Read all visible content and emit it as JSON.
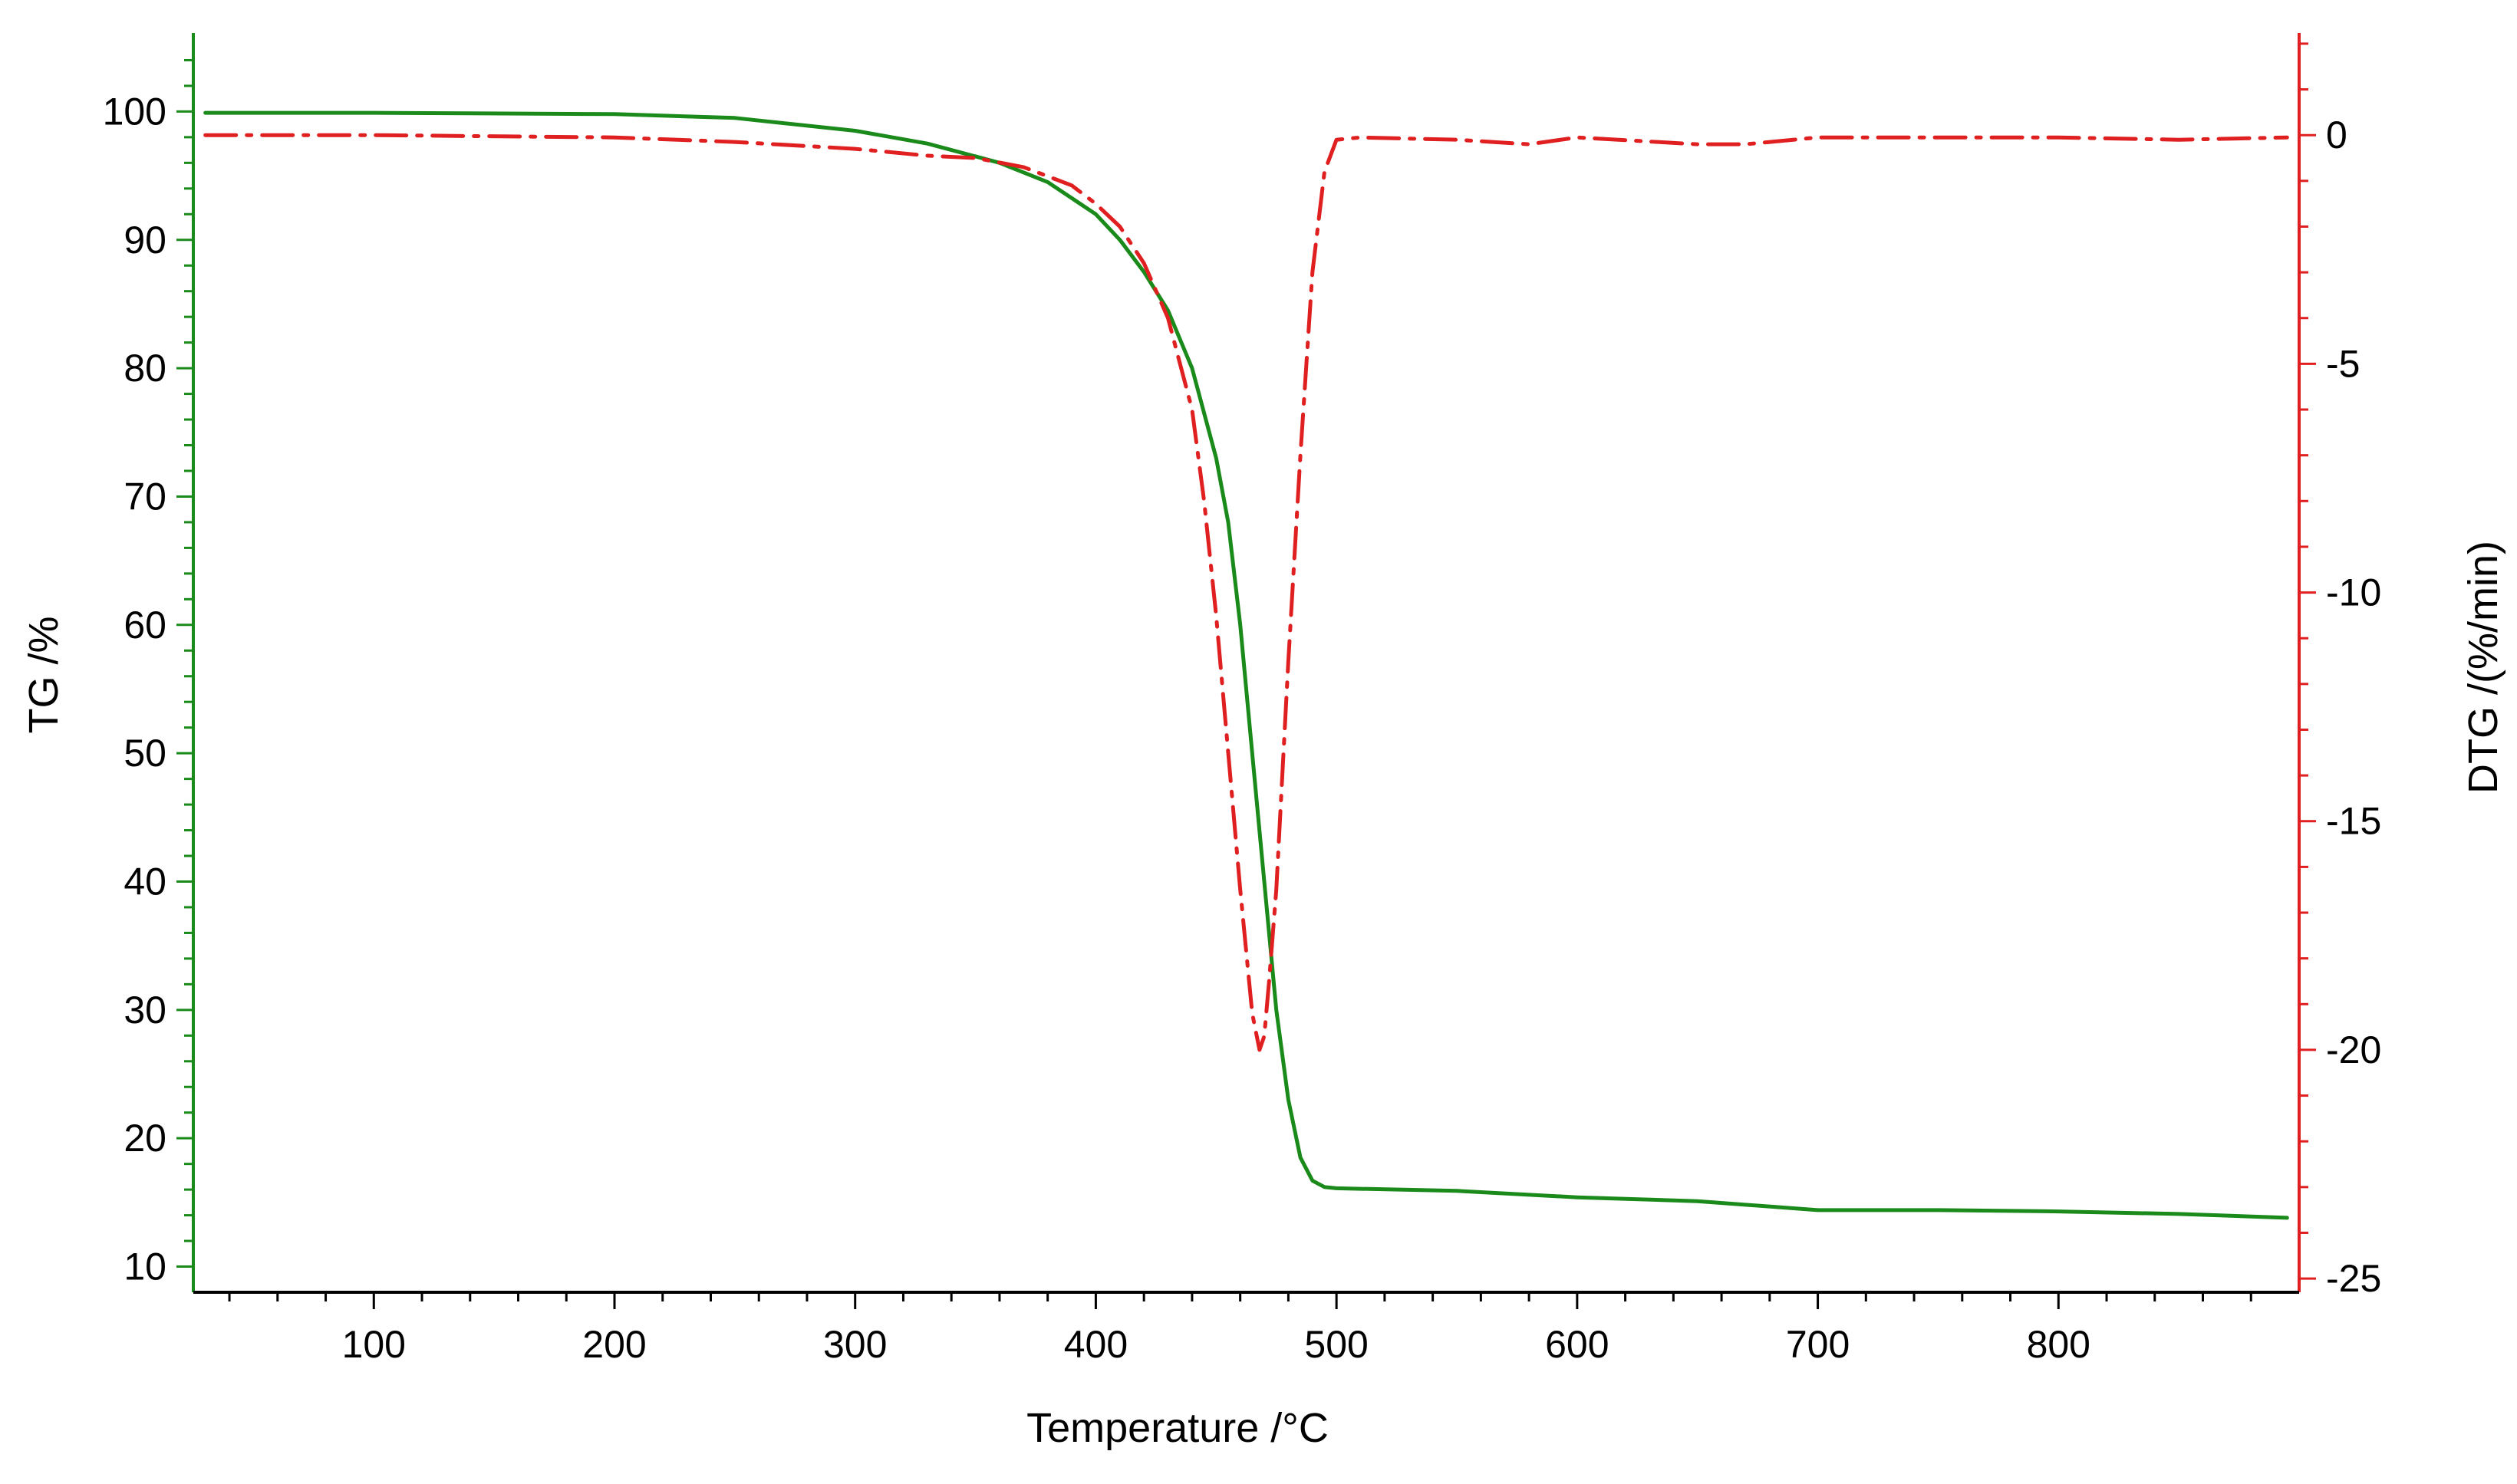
{
  "chart_data": {
    "type": "line",
    "xlabel": "Temperature /°C",
    "ylabel_left": "TG /%",
    "ylabel_right": "DTG /(%/min)",
    "xlim": [
      25,
      900
    ],
    "ylim_left": [
      8,
      106
    ],
    "ylim_right": [
      -25.3,
      2.2
    ],
    "x_ticks": [
      100,
      200,
      300,
      400,
      500,
      600,
      700,
      800
    ],
    "y_left_ticks": [
      10,
      20,
      30,
      40,
      50,
      60,
      70,
      80,
      90,
      100
    ],
    "y_right_ticks": [
      0,
      -5,
      -10,
      -15,
      -20,
      -25
    ],
    "colors": {
      "tg": "#1a8a1a",
      "dtg": "#e02020",
      "left_axis": "#1a8a1a",
      "right_axis": "#e02020",
      "bottom_axis": "#000000"
    },
    "series": [
      {
        "axis": "left",
        "style": "solid",
        "color": "#1a8a1a",
        "x": [
          30,
          100,
          200,
          250,
          300,
          330,
          360,
          380,
          400,
          410,
          420,
          430,
          440,
          450,
          455,
          460,
          465,
          470,
          475,
          480,
          485,
          490,
          495,
          500,
          550,
          600,
          650,
          700,
          750,
          800,
          850,
          895
        ],
        "y": [
          99.9,
          99.9,
          99.8,
          99.5,
          98.5,
          97.5,
          96.0,
          94.5,
          92.0,
          90.0,
          87.5,
          84.5,
          80.0,
          73.0,
          68.0,
          60.0,
          50.0,
          40.0,
          30.0,
          23.0,
          18.5,
          16.7,
          16.2,
          16.1,
          15.9,
          15.4,
          15.1,
          14.4,
          14.4,
          14.3,
          14.1,
          13.8
        ]
      },
      {
        "axis": "right",
        "style": "dash-dot",
        "color": "#e02020",
        "x": [
          30,
          100,
          200,
          250,
          300,
          330,
          350,
          370,
          390,
          400,
          410,
          420,
          430,
          440,
          445,
          450,
          455,
          460,
          465,
          468,
          470,
          472,
          475,
          478,
          480,
          485,
          490,
          495,
          500,
          510,
          550,
          580,
          600,
          650,
          670,
          700,
          750,
          800,
          850,
          895
        ],
        "y": [
          0.0,
          0.0,
          -0.05,
          -0.15,
          -0.3,
          -0.45,
          -0.5,
          -0.7,
          -1.1,
          -1.5,
          -2.0,
          -2.8,
          -4.0,
          -6.0,
          -8.0,
          -10.5,
          -13.5,
          -16.5,
          -19.2,
          -20.0,
          -19.7,
          -18.5,
          -16.5,
          -13.5,
          -11.5,
          -7.0,
          -3.0,
          -0.8,
          -0.1,
          -0.05,
          -0.1,
          -0.2,
          -0.05,
          -0.2,
          -0.2,
          -0.05,
          -0.05,
          -0.05,
          -0.1,
          -0.05
        ]
      }
    ]
  }
}
